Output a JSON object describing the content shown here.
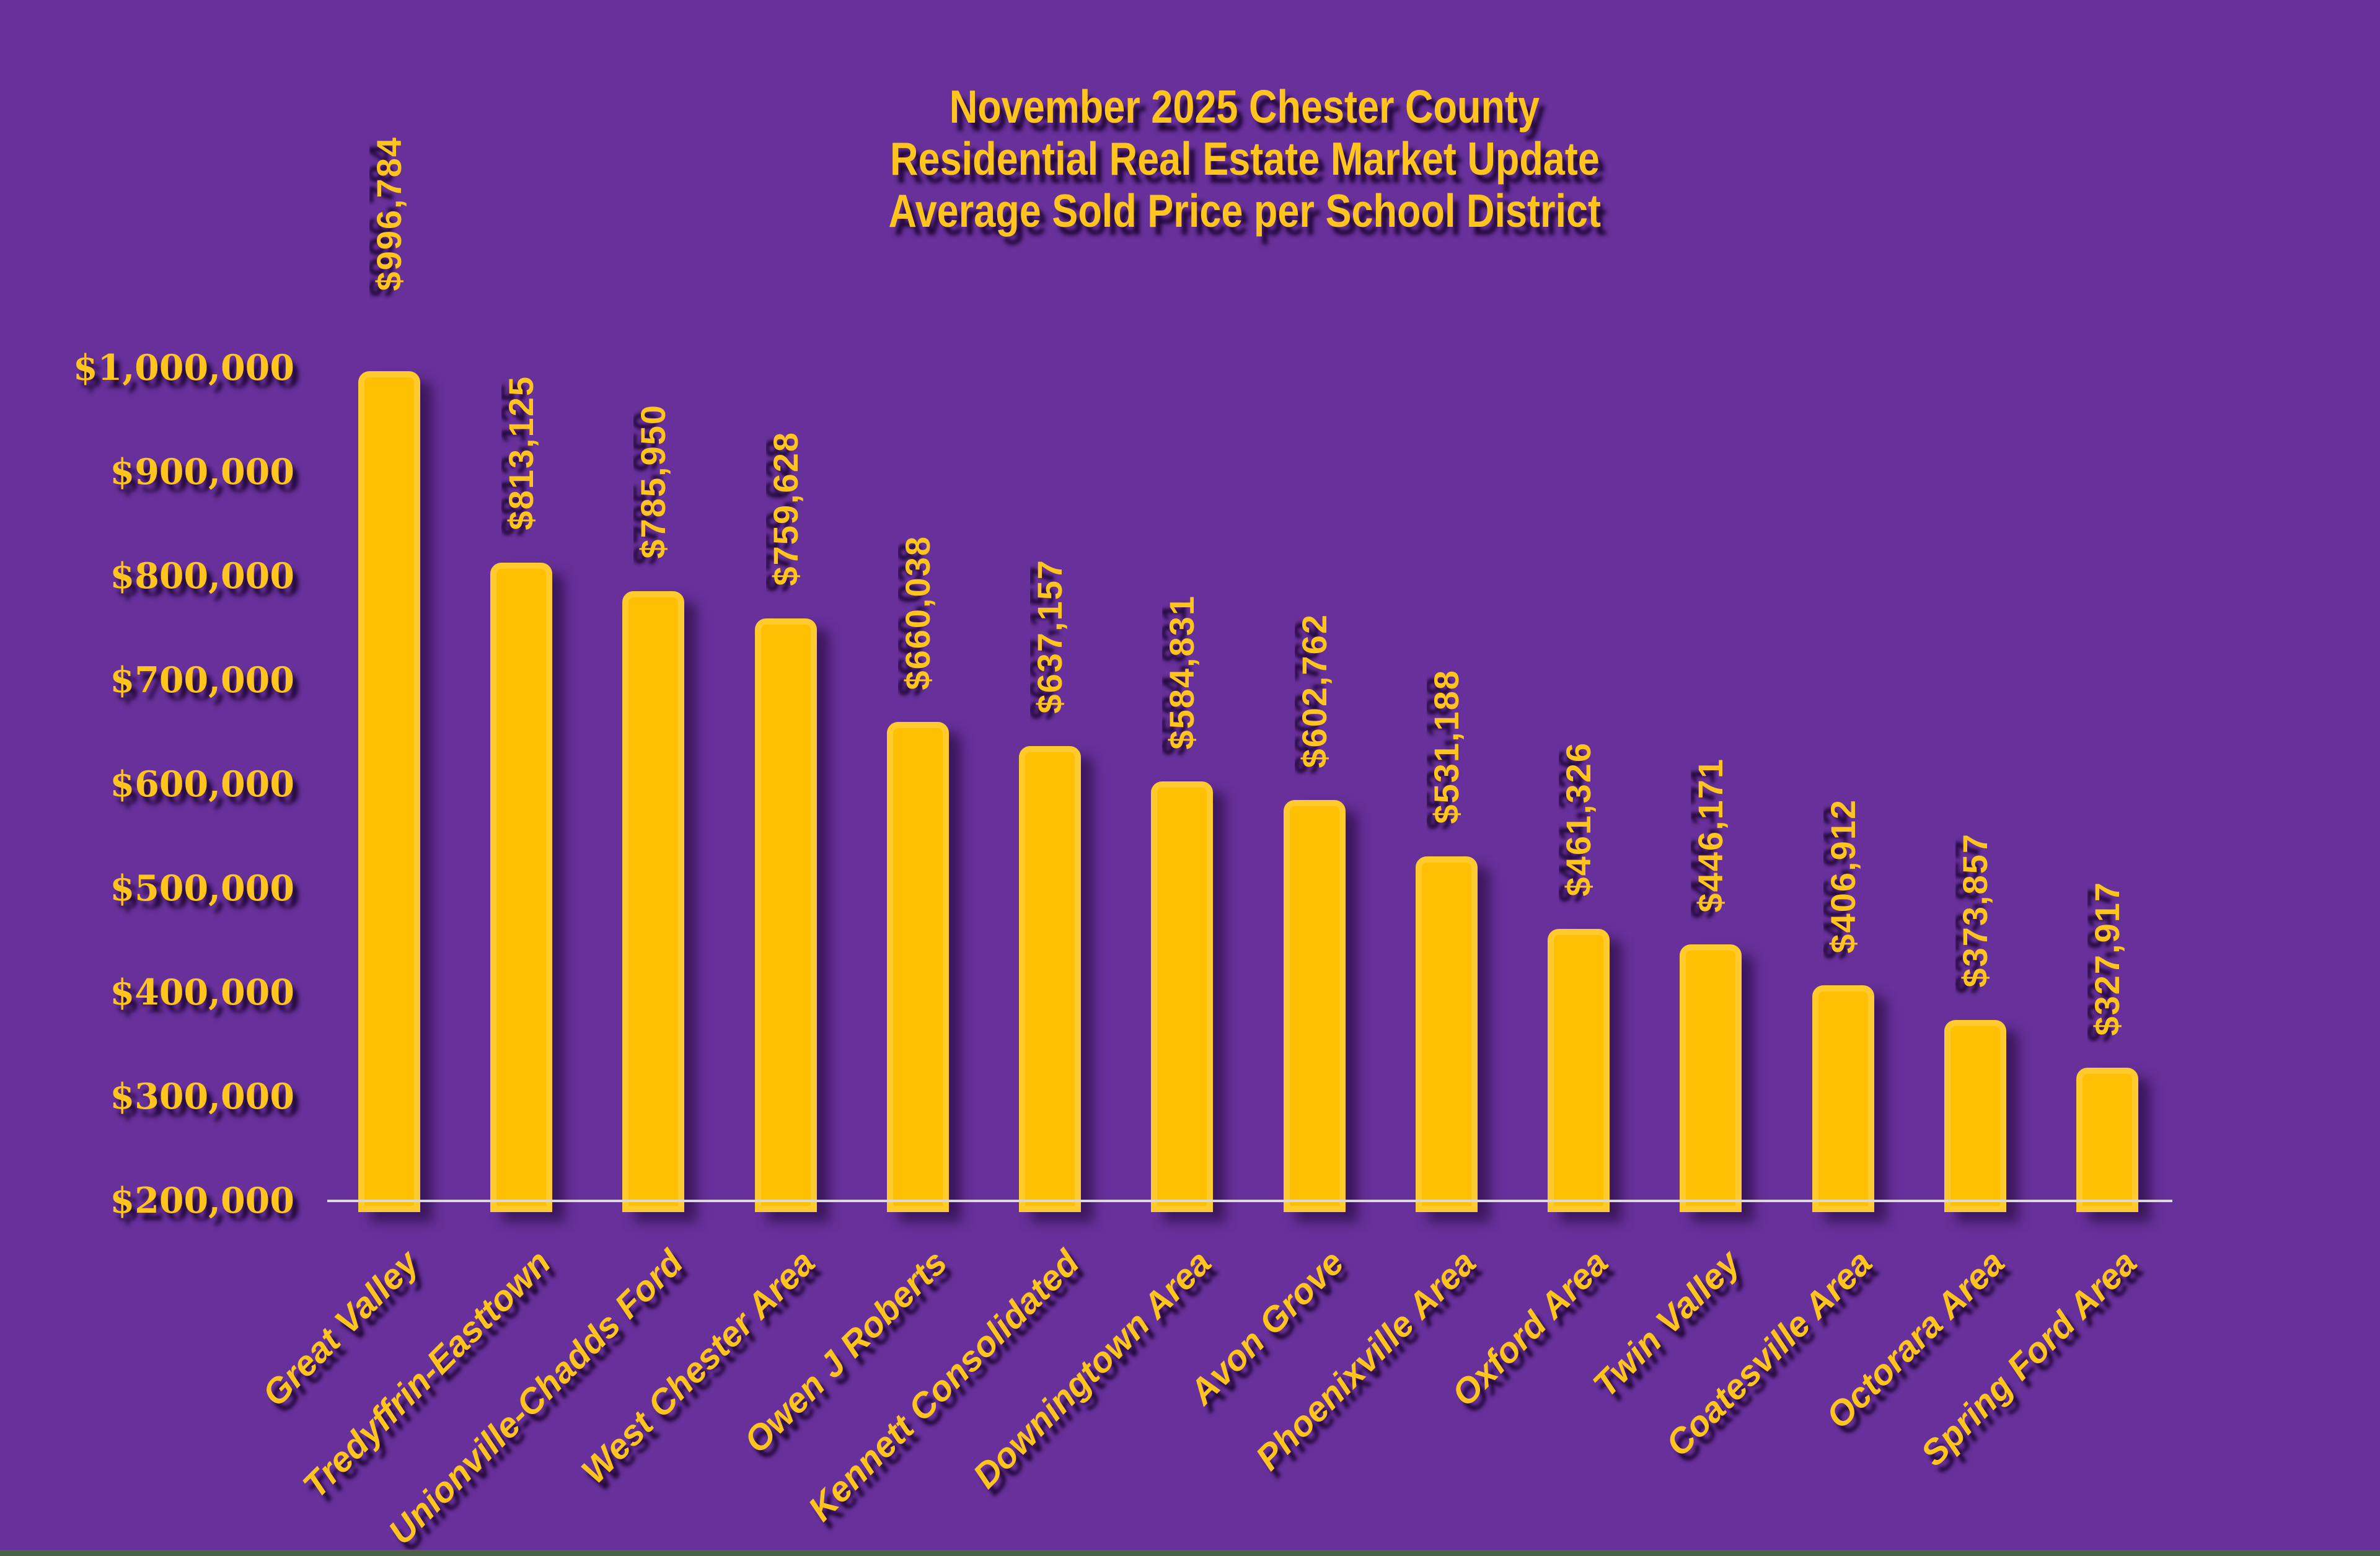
{
  "title": {
    "lines": [
      "November 2025 Chester County",
      "Residential Real Estate Market Update",
      "Average Sold Price per School District"
    ]
  },
  "chart_data": {
    "type": "bar",
    "title": "November 2025 Chester County Residential Real Estate Market Update - Average Sold Price per School District",
    "categories": [
      "Great Valley",
      "Tredyffrin-Easttown",
      "Unionville-Chadds Ford",
      "West Chester Area",
      "Owen J Roberts",
      "Kennett Consolidated",
      "Downingtown Area",
      "Avon Grove",
      "Phoenixville Area",
      "Oxford Area",
      "Twin Valley",
      "Coatesville Area",
      "Octorara Area",
      "Spring Ford Area"
    ],
    "values": [
      996784,
      813125,
      785950,
      759628,
      660038,
      637157,
      584831,
      602762,
      531188,
      461326,
      446171,
      406912,
      373857,
      327917
    ],
    "value_labels": [
      "$996,784",
      "$813,125",
      "$785,950",
      "$759,628",
      "$660,038",
      "$637,157",
      "$584,831",
      "$602,762",
      "$531,188",
      "$461,326",
      "$446,171",
      "$406,912",
      "$373,857",
      "$327,917"
    ],
    "xlabel": "",
    "ylabel": "",
    "ylim": [
      200000,
      1000000
    ],
    "grid": false,
    "legend": false,
    "bar_orientation": "vertical",
    "y_ticks": [
      {
        "value": 1000000,
        "label": "$1,000,000"
      },
      {
        "value": 900000,
        "label": "$900,000"
      },
      {
        "value": 800000,
        "label": "$800,000"
      },
      {
        "value": 700000,
        "label": "$700,000"
      },
      {
        "value": 600000,
        "label": "$600,000"
      },
      {
        "value": 500000,
        "label": "$500,000"
      },
      {
        "value": 400000,
        "label": "$400,000"
      },
      {
        "value": 300000,
        "label": "$300,000"
      },
      {
        "value": 200000,
        "label": "$200,000"
      }
    ]
  },
  "colors": {
    "background": "#67309A",
    "bar_fill": "#FFBF03",
    "bar_border": "#FFCA2E",
    "label_gold": "#FFC41E",
    "axis_line": "#D9D9D9",
    "bottom_edge": "#4F6049"
  }
}
